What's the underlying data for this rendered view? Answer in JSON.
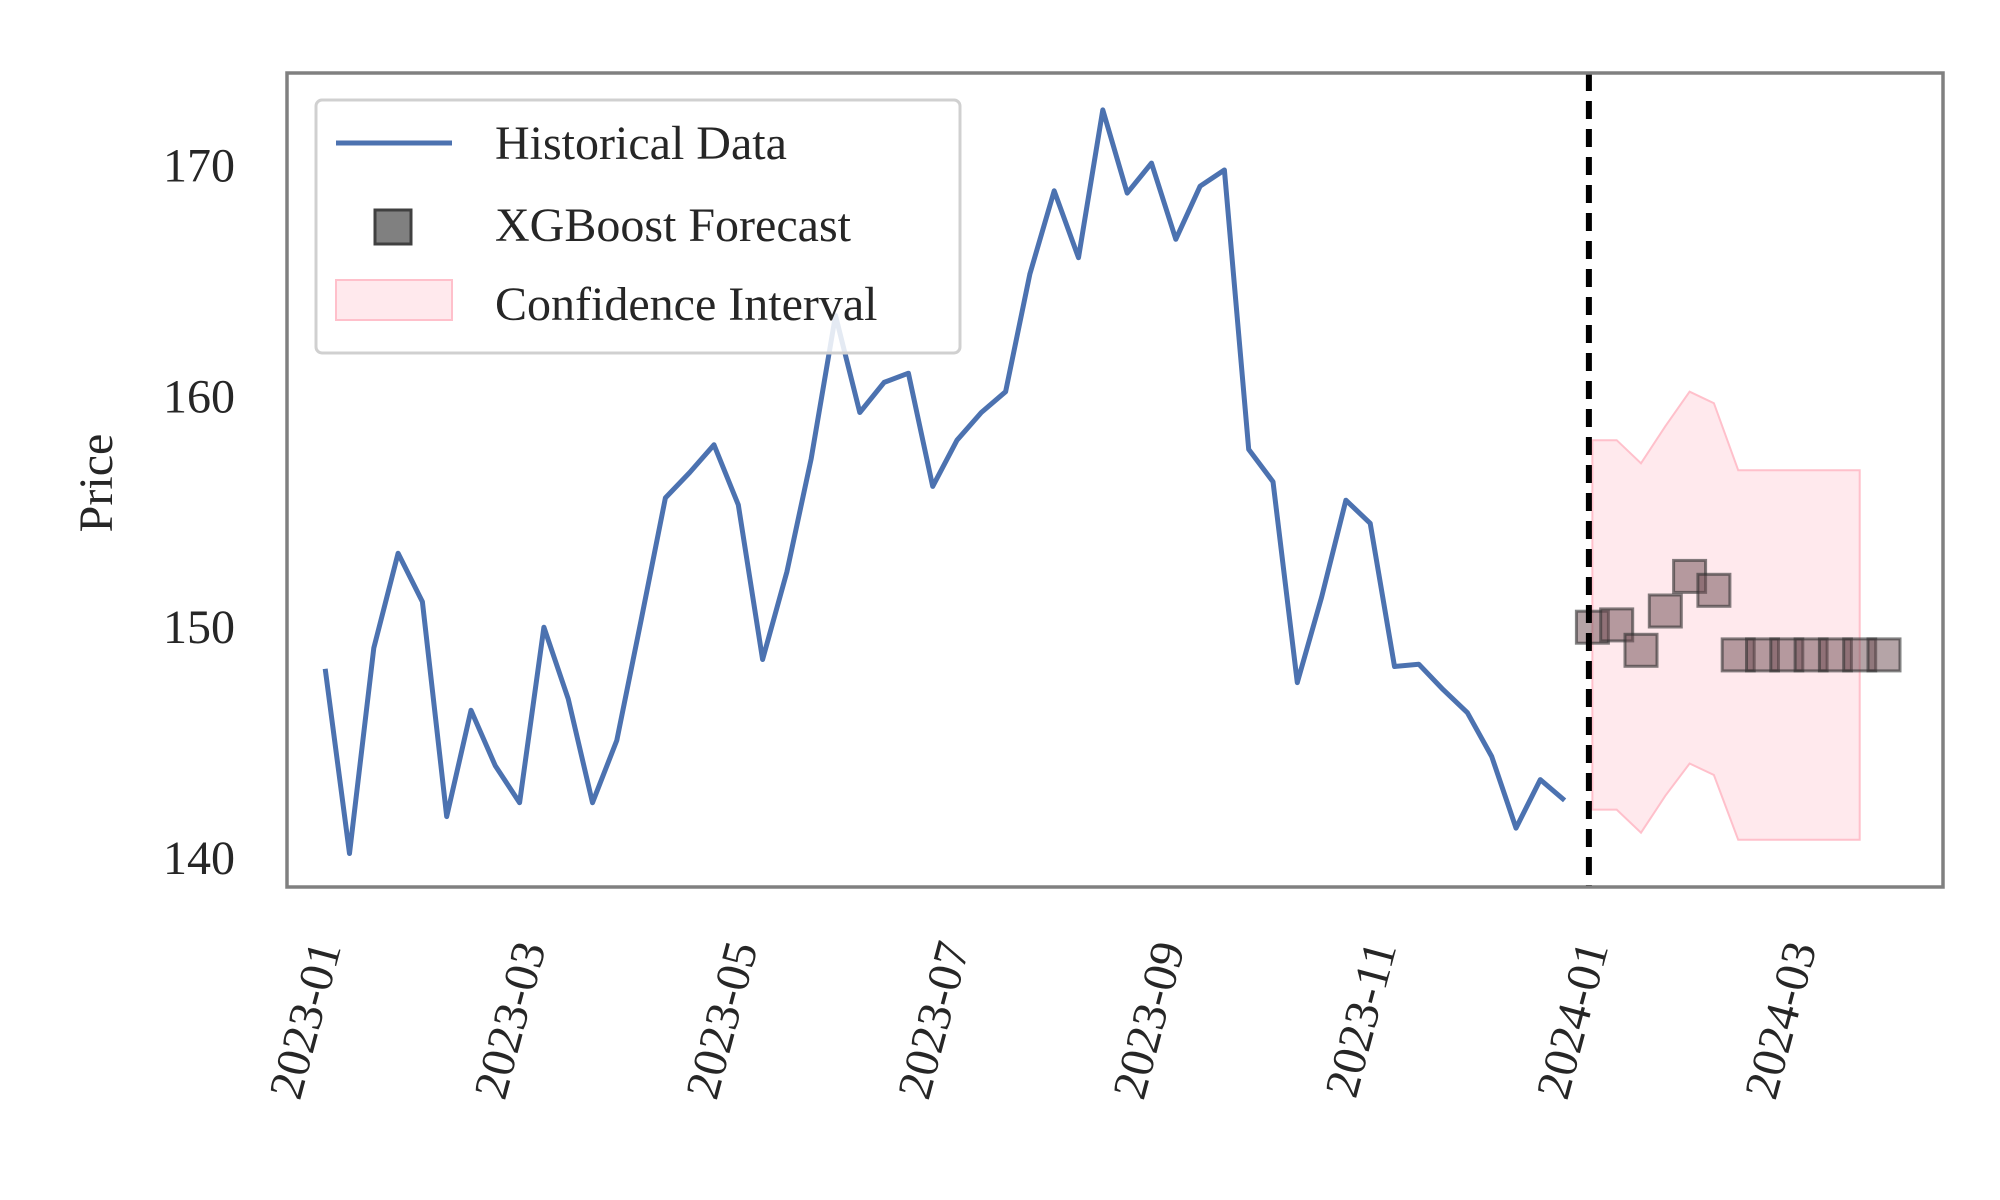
{
  "chart_data": {
    "type": "line",
    "title": "",
    "xlabel": "",
    "ylabel": "Price",
    "ylim": [
      138.75,
      174.0
    ],
    "xlim": [
      "2022-12-21",
      "2024-04-11"
    ],
    "yticks": [
      140,
      150,
      160,
      170
    ],
    "xticks": [
      "2023-01",
      "2023-03",
      "2023-05",
      "2023-07",
      "2023-09",
      "2023-11",
      "2024-01",
      "2024-03"
    ],
    "grid": false,
    "legend_position": "upper-left",
    "split_date": "2023-12-31",
    "series": [
      {
        "name": "Historical Data",
        "kind": "line",
        "color": "#4c72b0",
        "points": [
          [
            "2023-01-01",
            148.2
          ],
          [
            "2023-01-08",
            140.2
          ],
          [
            "2023-01-15",
            149.1
          ],
          [
            "2023-01-22",
            153.2
          ],
          [
            "2023-01-29",
            151.1
          ],
          [
            "2023-02-05",
            141.8
          ],
          [
            "2023-02-12",
            146.4
          ],
          [
            "2023-02-19",
            144.0
          ],
          [
            "2023-02-26",
            142.4
          ],
          [
            "2023-03-05",
            150.0
          ],
          [
            "2023-03-12",
            146.9
          ],
          [
            "2023-03-19",
            142.4
          ],
          [
            "2023-03-26",
            145.1
          ],
          [
            "2023-04-02",
            150.3
          ],
          [
            "2023-04-09",
            155.6
          ],
          [
            "2023-04-16",
            156.7
          ],
          [
            "2023-04-23",
            157.9
          ],
          [
            "2023-04-30",
            155.3
          ],
          [
            "2023-05-07",
            148.6
          ],
          [
            "2023-05-14",
            152.4
          ],
          [
            "2023-05-21",
            157.3
          ],
          [
            "2023-05-28",
            163.5
          ],
          [
            "2023-06-04",
            159.3
          ],
          [
            "2023-06-11",
            160.6
          ],
          [
            "2023-06-18",
            161.0
          ],
          [
            "2023-06-25",
            156.1
          ],
          [
            "2023-07-02",
            158.1
          ],
          [
            "2023-07-09",
            159.3
          ],
          [
            "2023-07-16",
            160.2
          ],
          [
            "2023-07-23",
            165.3
          ],
          [
            "2023-07-30",
            168.9
          ],
          [
            "2023-08-06",
            166.0
          ],
          [
            "2023-08-13",
            172.4
          ],
          [
            "2023-08-20",
            168.8
          ],
          [
            "2023-08-27",
            170.1
          ],
          [
            "2023-09-03",
            166.8
          ],
          [
            "2023-09-10",
            169.1
          ],
          [
            "2023-09-17",
            169.8
          ],
          [
            "2023-09-24",
            157.7
          ],
          [
            "2023-10-01",
            156.3
          ],
          [
            "2023-10-08",
            147.6
          ],
          [
            "2023-10-15",
            151.3
          ],
          [
            "2023-10-22",
            155.5
          ],
          [
            "2023-10-29",
            154.5
          ],
          [
            "2023-11-05",
            148.3
          ],
          [
            "2023-11-12",
            148.4
          ],
          [
            "2023-11-19",
            147.3
          ],
          [
            "2023-11-26",
            146.3
          ],
          [
            "2023-12-03",
            144.4
          ],
          [
            "2023-12-10",
            141.3
          ],
          [
            "2023-12-17",
            143.4
          ],
          [
            "2023-12-24",
            142.5
          ]
        ]
      },
      {
        "name": "XGBoost Forecast",
        "kind": "scatter",
        "marker": "square",
        "color": "#555555",
        "points": [
          [
            "2024-01-01",
            150.0
          ],
          [
            "2024-01-08",
            150.1
          ],
          [
            "2024-01-15",
            149.0
          ],
          [
            "2024-01-22",
            150.7
          ],
          [
            "2024-01-29",
            152.2
          ],
          [
            "2024-02-05",
            151.6
          ],
          [
            "2024-02-12",
            148.8
          ],
          [
            "2024-02-19",
            148.8
          ],
          [
            "2024-02-26",
            148.8
          ],
          [
            "2024-03-04",
            148.8
          ],
          [
            "2024-03-11",
            148.8
          ],
          [
            "2024-03-18",
            148.8
          ],
          [
            "2024-03-25",
            148.8
          ]
        ]
      },
      {
        "name": "Confidence Interval",
        "kind": "band",
        "color": "#ffc0cb",
        "x": [
          "2024-01-01",
          "2024-01-08",
          "2024-01-15",
          "2024-01-22",
          "2024-01-29",
          "2024-02-05",
          "2024-02-12",
          "2024-02-19",
          "2024-02-26",
          "2024-03-04",
          "2024-03-11",
          "2024-03-18"
        ],
        "lower": [
          142.1,
          142.1,
          141.1,
          142.7,
          144.1,
          143.6,
          140.8,
          140.8,
          140.8,
          140.8,
          140.8,
          140.8
        ],
        "upper": [
          158.1,
          158.1,
          157.1,
          158.7,
          160.2,
          159.7,
          156.8,
          156.8,
          156.8,
          156.8,
          156.8,
          156.8
        ]
      }
    ]
  }
}
